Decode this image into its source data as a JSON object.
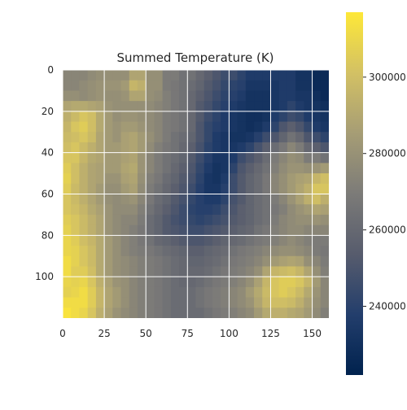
{
  "chart_data": {
    "type": "heatmap",
    "title": "Summed Temperature (K)",
    "xlabel": "",
    "ylabel": "",
    "xlim": [
      0,
      160
    ],
    "ylim": [
      120,
      0
    ],
    "x_ticks": [
      "0",
      "25",
      "50",
      "75",
      "100",
      "125",
      "150"
    ],
    "y_ticks": [
      "0",
      "20",
      "40",
      "60",
      "80",
      "100"
    ],
    "grid": true,
    "colormap": "cividis",
    "colors": [
      "#00224e",
      "#233e6c",
      "#575c6d",
      "#7c7b78",
      "#a69d75",
      "#d3c164",
      "#fee838"
    ],
    "colorbar": {
      "ticks": [
        "240000",
        "260000",
        "280000",
        "300000"
      ],
      "range": [
        222000,
        317000
      ]
    },
    "grid_rows": 24,
    "grid_cols": 32,
    "values": [
      [
        0.55,
        0.55,
        0.55,
        0.58,
        0.6,
        0.6,
        0.6,
        0.6,
        0.7,
        0.7,
        0.6,
        0.6,
        0.5,
        0.5,
        0.45,
        0.45,
        0.4,
        0.35,
        0.3,
        0.25,
        0.25,
        0.2,
        0.15,
        0.15,
        0.15,
        0.15,
        0.15,
        0.15,
        0.1,
        0.1,
        0.05,
        0.05
      ],
      [
        0.55,
        0.55,
        0.58,
        0.6,
        0.62,
        0.62,
        0.62,
        0.65,
        0.78,
        0.75,
        0.6,
        0.6,
        0.5,
        0.48,
        0.45,
        0.42,
        0.38,
        0.32,
        0.28,
        0.22,
        0.2,
        0.18,
        0.12,
        0.12,
        0.12,
        0.12,
        0.15,
        0.15,
        0.1,
        0.1,
        0.05,
        0.05
      ],
      [
        0.6,
        0.6,
        0.58,
        0.6,
        0.62,
        0.6,
        0.6,
        0.62,
        0.7,
        0.7,
        0.6,
        0.58,
        0.52,
        0.48,
        0.45,
        0.4,
        0.35,
        0.3,
        0.25,
        0.2,
        0.18,
        0.15,
        0.1,
        0.1,
        0.1,
        0.12,
        0.15,
        0.15,
        0.12,
        0.12,
        0.08,
        0.05
      ],
      [
        0.7,
        0.72,
        0.72,
        0.7,
        0.68,
        0.62,
        0.6,
        0.6,
        0.6,
        0.6,
        0.58,
        0.55,
        0.52,
        0.48,
        0.45,
        0.4,
        0.32,
        0.28,
        0.22,
        0.18,
        0.15,
        0.12,
        0.1,
        0.1,
        0.1,
        0.12,
        0.15,
        0.2,
        0.15,
        0.12,
        0.1,
        0.08
      ],
      [
        0.75,
        0.8,
        0.85,
        0.82,
        0.72,
        0.65,
        0.6,
        0.62,
        0.62,
        0.6,
        0.58,
        0.55,
        0.5,
        0.48,
        0.45,
        0.4,
        0.32,
        0.25,
        0.2,
        0.15,
        0.12,
        0.1,
        0.08,
        0.08,
        0.1,
        0.15,
        0.2,
        0.25,
        0.22,
        0.15,
        0.12,
        0.1
      ],
      [
        0.78,
        0.85,
        0.88,
        0.82,
        0.72,
        0.65,
        0.62,
        0.65,
        0.65,
        0.62,
        0.58,
        0.55,
        0.5,
        0.48,
        0.45,
        0.4,
        0.3,
        0.22,
        0.18,
        0.15,
        0.12,
        0.1,
        0.08,
        0.1,
        0.15,
        0.2,
        0.3,
        0.35,
        0.3,
        0.22,
        0.15,
        0.12
      ],
      [
        0.8,
        0.82,
        0.85,
        0.8,
        0.7,
        0.65,
        0.62,
        0.68,
        0.7,
        0.65,
        0.6,
        0.55,
        0.5,
        0.45,
        0.42,
        0.38,
        0.3,
        0.22,
        0.15,
        0.12,
        0.1,
        0.1,
        0.12,
        0.18,
        0.25,
        0.3,
        0.38,
        0.45,
        0.4,
        0.3,
        0.25,
        0.2
      ],
      [
        0.82,
        0.85,
        0.8,
        0.75,
        0.7,
        0.65,
        0.65,
        0.68,
        0.7,
        0.65,
        0.58,
        0.52,
        0.48,
        0.45,
        0.4,
        0.35,
        0.28,
        0.2,
        0.15,
        0.12,
        0.12,
        0.15,
        0.2,
        0.28,
        0.35,
        0.42,
        0.48,
        0.55,
        0.5,
        0.4,
        0.35,
        0.3
      ],
      [
        0.85,
        0.85,
        0.78,
        0.72,
        0.7,
        0.65,
        0.65,
        0.68,
        0.7,
        0.62,
        0.55,
        0.5,
        0.45,
        0.42,
        0.38,
        0.32,
        0.25,
        0.18,
        0.12,
        0.12,
        0.15,
        0.25,
        0.3,
        0.35,
        0.42,
        0.5,
        0.55,
        0.6,
        0.58,
        0.5,
        0.5,
        0.45
      ],
      [
        0.88,
        0.82,
        0.75,
        0.7,
        0.68,
        0.65,
        0.65,
        0.7,
        0.72,
        0.62,
        0.55,
        0.5,
        0.45,
        0.4,
        0.35,
        0.3,
        0.22,
        0.15,
        0.1,
        0.12,
        0.2,
        0.3,
        0.35,
        0.4,
        0.45,
        0.52,
        0.58,
        0.62,
        0.62,
        0.6,
        0.62,
        0.65
      ],
      [
        0.9,
        0.82,
        0.75,
        0.7,
        0.68,
        0.62,
        0.62,
        0.68,
        0.7,
        0.6,
        0.52,
        0.48,
        0.42,
        0.38,
        0.32,
        0.28,
        0.2,
        0.12,
        0.1,
        0.15,
        0.25,
        0.32,
        0.38,
        0.42,
        0.48,
        0.55,
        0.6,
        0.65,
        0.68,
        0.7,
        0.78,
        0.82
      ],
      [
        0.88,
        0.8,
        0.75,
        0.7,
        0.65,
        0.6,
        0.6,
        0.65,
        0.68,
        0.58,
        0.5,
        0.45,
        0.4,
        0.35,
        0.3,
        0.25,
        0.18,
        0.12,
        0.12,
        0.18,
        0.25,
        0.32,
        0.38,
        0.42,
        0.48,
        0.55,
        0.6,
        0.65,
        0.7,
        0.75,
        0.85,
        0.85
      ],
      [
        0.85,
        0.8,
        0.75,
        0.7,
        0.65,
        0.6,
        0.58,
        0.6,
        0.62,
        0.55,
        0.48,
        0.42,
        0.38,
        0.32,
        0.28,
        0.22,
        0.18,
        0.15,
        0.15,
        0.2,
        0.28,
        0.32,
        0.38,
        0.42,
        0.45,
        0.5,
        0.55,
        0.62,
        0.68,
        0.75,
        0.82,
        0.75
      ],
      [
        0.85,
        0.82,
        0.78,
        0.72,
        0.68,
        0.62,
        0.58,
        0.58,
        0.58,
        0.52,
        0.45,
        0.4,
        0.35,
        0.3,
        0.25,
        0.2,
        0.18,
        0.18,
        0.2,
        0.25,
        0.3,
        0.35,
        0.38,
        0.42,
        0.45,
        0.48,
        0.52,
        0.58,
        0.62,
        0.65,
        0.7,
        0.68
      ],
      [
        0.88,
        0.85,
        0.8,
        0.75,
        0.7,
        0.62,
        0.58,
        0.55,
        0.55,
        0.5,
        0.42,
        0.38,
        0.32,
        0.28,
        0.25,
        0.22,
        0.2,
        0.22,
        0.25,
        0.28,
        0.32,
        0.35,
        0.38,
        0.42,
        0.45,
        0.5,
        0.55,
        0.58,
        0.6,
        0.6,
        0.62,
        0.6
      ],
      [
        0.9,
        0.85,
        0.8,
        0.75,
        0.7,
        0.62,
        0.58,
        0.55,
        0.52,
        0.48,
        0.42,
        0.38,
        0.32,
        0.3,
        0.28,
        0.25,
        0.25,
        0.28,
        0.3,
        0.32,
        0.35,
        0.38,
        0.4,
        0.45,
        0.48,
        0.52,
        0.55,
        0.58,
        0.58,
        0.55,
        0.55,
        0.55
      ],
      [
        0.92,
        0.88,
        0.82,
        0.78,
        0.72,
        0.65,
        0.6,
        0.55,
        0.52,
        0.48,
        0.45,
        0.4,
        0.38,
        0.35,
        0.32,
        0.3,
        0.3,
        0.32,
        0.35,
        0.38,
        0.4,
        0.42,
        0.45,
        0.48,
        0.5,
        0.52,
        0.55,
        0.58,
        0.55,
        0.52,
        0.5,
        0.5
      ],
      [
        0.92,
        0.9,
        0.85,
        0.8,
        0.72,
        0.65,
        0.6,
        0.55,
        0.52,
        0.5,
        0.48,
        0.45,
        0.42,
        0.4,
        0.38,
        0.35,
        0.35,
        0.38,
        0.4,
        0.42,
        0.45,
        0.48,
        0.5,
        0.52,
        0.55,
        0.58,
        0.6,
        0.6,
        0.58,
        0.55,
        0.5,
        0.48
      ],
      [
        0.95,
        0.9,
        0.85,
        0.8,
        0.72,
        0.65,
        0.6,
        0.58,
        0.55,
        0.52,
        0.5,
        0.48,
        0.45,
        0.42,
        0.4,
        0.38,
        0.38,
        0.4,
        0.42,
        0.45,
        0.48,
        0.5,
        0.52,
        0.55,
        0.6,
        0.65,
        0.68,
        0.7,
        0.68,
        0.6,
        0.55,
        0.5
      ],
      [
        0.95,
        0.88,
        0.88,
        0.82,
        0.72,
        0.65,
        0.6,
        0.58,
        0.55,
        0.52,
        0.5,
        0.48,
        0.45,
        0.42,
        0.4,
        0.4,
        0.4,
        0.42,
        0.45,
        0.48,
        0.5,
        0.52,
        0.55,
        0.6,
        0.7,
        0.78,
        0.8,
        0.82,
        0.78,
        0.7,
        0.6,
        0.52
      ],
      [
        0.92,
        0.9,
        0.92,
        0.85,
        0.75,
        0.68,
        0.62,
        0.6,
        0.55,
        0.52,
        0.5,
        0.48,
        0.45,
        0.42,
        0.4,
        0.4,
        0.42,
        0.45,
        0.48,
        0.5,
        0.52,
        0.55,
        0.6,
        0.68,
        0.78,
        0.85,
        0.88,
        0.88,
        0.85,
        0.78,
        0.65,
        0.55
      ],
      [
        0.9,
        0.92,
        0.95,
        0.88,
        0.78,
        0.7,
        0.65,
        0.6,
        0.55,
        0.52,
        0.5,
        0.48,
        0.45,
        0.42,
        0.42,
        0.42,
        0.45,
        0.48,
        0.5,
        0.52,
        0.55,
        0.58,
        0.65,
        0.72,
        0.8,
        0.85,
        0.88,
        0.85,
        0.8,
        0.72,
        0.62,
        0.55
      ],
      [
        0.95,
        0.95,
        0.95,
        0.88,
        0.78,
        0.7,
        0.65,
        0.6,
        0.55,
        0.52,
        0.5,
        0.48,
        0.45,
        0.42,
        0.42,
        0.42,
        0.45,
        0.48,
        0.5,
        0.52,
        0.55,
        0.58,
        0.62,
        0.7,
        0.78,
        0.82,
        0.82,
        0.8,
        0.75,
        0.68,
        0.6,
        0.55
      ],
      [
        0.98,
        0.95,
        0.92,
        0.85,
        0.75,
        0.68,
        0.62,
        0.58,
        0.55,
        0.52,
        0.5,
        0.48,
        0.45,
        0.42,
        0.42,
        0.42,
        0.42,
        0.45,
        0.48,
        0.5,
        0.52,
        0.55,
        0.58,
        0.65,
        0.72,
        0.75,
        0.75,
        0.72,
        0.7,
        0.65,
        0.58,
        0.52
      ]
    ]
  }
}
